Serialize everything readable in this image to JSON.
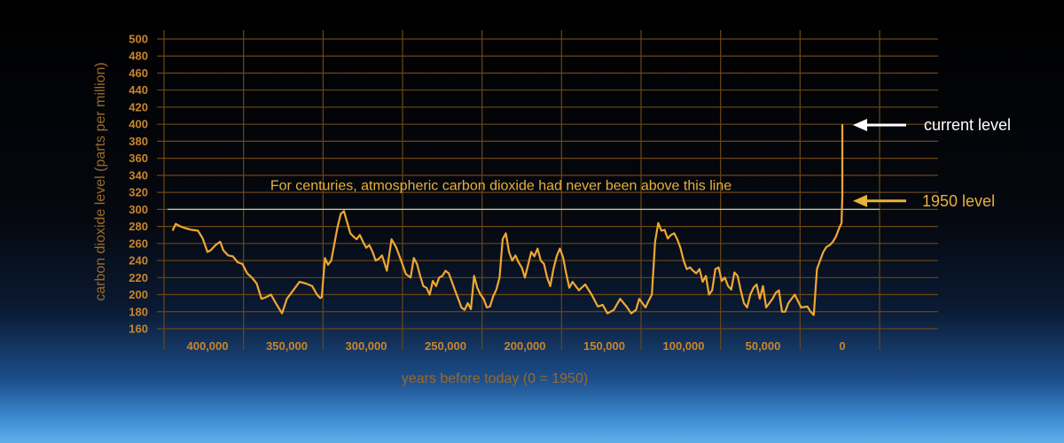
{
  "chart_data": {
    "type": "line",
    "title": "",
    "xlabel": "years before today (0 = 1950)",
    "ylabel": "carbon dioxide level (parts per million)",
    "xlim": [
      430000,
      -45000
    ],
    "ylim": [
      160,
      500
    ],
    "yticks": [
      160,
      180,
      200,
      220,
      240,
      260,
      280,
      300,
      320,
      340,
      360,
      380,
      400,
      420,
      440,
      460,
      480,
      500
    ],
    "xticks": [
      400000,
      350000,
      300000,
      250000,
      200000,
      150000,
      100000,
      50000,
      0
    ],
    "xtick_labels": [
      "400,000",
      "350,000",
      "300,000",
      "250,000",
      "200,000",
      "150,000",
      "100,000",
      "50,000",
      "0"
    ],
    "grid": true,
    "reference_line": {
      "y": 300,
      "label": "For centuries, atmospheric carbon dioxide had never been above this line"
    },
    "annotations": [
      {
        "text": "current level",
        "x": 0,
        "y": 400
      },
      {
        "text": "1950 level",
        "x": 0,
        "y": 311
      }
    ],
    "series": [
      {
        "color": "#f0a830",
        "x": [
          422000,
          420000,
          417000,
          414000,
          410000,
          406000,
          403000,
          400000,
          398000,
          395000,
          392000,
          390000,
          387000,
          384000,
          381000,
          378000,
          375000,
          372000,
          369000,
          366000,
          363000,
          360000,
          357000,
          353000,
          350000,
          346000,
          342000,
          338000,
          334000,
          331000,
          329000,
          328000,
          326000,
          324000,
          322000,
          320000,
          318000,
          316000,
          314000,
          312000,
          310000,
          308000,
          306000,
          304000,
          302000,
          300000,
          298000,
          296000,
          294000,
          292000,
          290000,
          287000,
          284000,
          281000,
          278000,
          275000,
          272000,
          270000,
          268000,
          266000,
          264000,
          262000,
          260000,
          258000,
          256000,
          254000,
          252000,
          250000,
          248000,
          246000,
          244000,
          242000,
          240000,
          238000,
          236000,
          234000,
          232000,
          230000,
          228000,
          226000,
          224000,
          222000,
          220000,
          218000,
          216000,
          214000,
          212000,
          210000,
          208000,
          206000,
          204000,
          202000,
          200000,
          198000,
          196000,
          194000,
          192000,
          190000,
          188000,
          186000,
          184000,
          182000,
          180000,
          178000,
          176000,
          174000,
          172000,
          170000,
          166000,
          162000,
          158000,
          154000,
          151000,
          148000,
          144000,
          140000,
          136000,
          133000,
          130000,
          128000,
          126000,
          124000,
          122000,
          120000,
          118000,
          116000,
          114000,
          112000,
          110000,
          108000,
          106000,
          104000,
          102000,
          100000,
          98000,
          96000,
          94000,
          92000,
          90000,
          88000,
          86000,
          84000,
          82000,
          80000,
          78000,
          76000,
          74000,
          72000,
          70000,
          68000,
          66000,
          64000,
          62000,
          60000,
          58000,
          56000,
          54000,
          52000,
          50000,
          48000,
          46000,
          44000,
          42000,
          40000,
          38000,
          36000,
          34000,
          30000,
          26000,
          22000,
          20000,
          18000,
          16000,
          14000,
          12000,
          10000,
          8000,
          6000,
          4000,
          2000,
          500,
          0,
          0
        ],
        "y": [
          275,
          283,
          280,
          278,
          276,
          275,
          266,
          250,
          252,
          258,
          262,
          252,
          246,
          245,
          238,
          236,
          225,
          220,
          213,
          195,
          197,
          200,
          190,
          178,
          195,
          205,
          215,
          213,
          210,
          200,
          196,
          197,
          243,
          235,
          240,
          260,
          280,
          295,
          298,
          285,
          272,
          268,
          265,
          270,
          262,
          255,
          258,
          250,
          240,
          242,
          246,
          228,
          265,
          255,
          240,
          224,
          220,
          243,
          236,
          222,
          210,
          208,
          200,
          216,
          210,
          220,
          222,
          228,
          225,
          215,
          205,
          195,
          185,
          182,
          190,
          183,
          222,
          208,
          200,
          195,
          185,
          186,
          198,
          206,
          220,
          265,
          272,
          250,
          240,
          246,
          238,
          232,
          220,
          235,
          250,
          245,
          254,
          240,
          236,
          220,
          210,
          230,
          245,
          254,
          244,
          225,
          208,
          215,
          205,
          212,
          200,
          186,
          188,
          178,
          182,
          195,
          186,
          178,
          182,
          195,
          190,
          185,
          193,
          200,
          262,
          284,
          275,
          276,
          266,
          270,
          272,
          265,
          255,
          240,
          230,
          232,
          228,
          225,
          230,
          215,
          222,
          200,
          205,
          230,
          232,
          216,
          220,
          210,
          206,
          226,
          222,
          205,
          190,
          185,
          200,
          208,
          212,
          195,
          210,
          185,
          190,
          195,
          202,
          205,
          180,
          180,
          190,
          200,
          185,
          186,
          180,
          176,
          230,
          240,
          250,
          256,
          258,
          262,
          268,
          278,
          284,
          315,
          400
        ]
      }
    ]
  }
}
